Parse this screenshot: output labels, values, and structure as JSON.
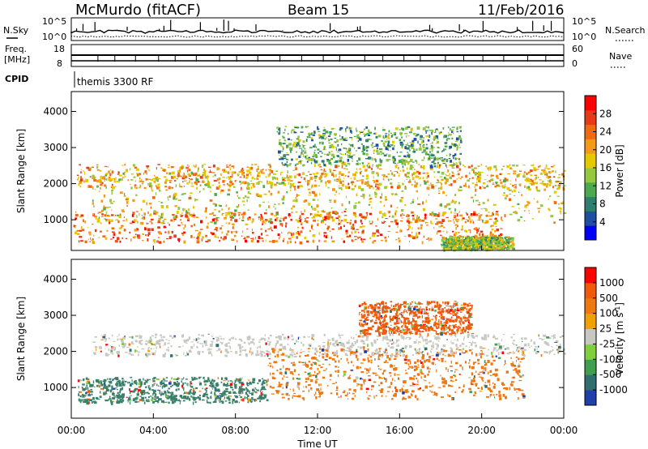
{
  "header": {
    "station": "McMurdo (fitACF)",
    "beam": "Beam 15",
    "date": "11/Feb/2016"
  },
  "strips": {
    "nsky_label": "N.Sky",
    "nsearch_label": "N.Search",
    "nsky_ticks": [
      "10^5",
      "10^0"
    ],
    "nsearch_ticks": [
      "10^5",
      "10^0"
    ],
    "freq_label": "Freq.",
    "freq_unit": "[MHz]",
    "freq_ticks": [
      "18",
      "8"
    ],
    "nave_label": "Nave",
    "nave_ticks": [
      "60",
      "0"
    ],
    "cpid_label": "CPID",
    "cpid_value": "themis 3300 RF"
  },
  "chart_data": [
    {
      "type": "heatmap",
      "name": "power",
      "ylabel": "Slant Range [km]",
      "ylim": [
        150,
        4550
      ],
      "yticks": [
        "1000",
        "2000",
        "3000",
        "4000"
      ],
      "xlim_hours": [
        0,
        24
      ],
      "colorbar": {
        "label": "Power [dB]",
        "ticks": [
          "28",
          "24",
          "20",
          "16",
          "12",
          "8",
          "4"
        ],
        "colors": [
          "#0000ff",
          "#1e4fa0",
          "#2f7f70",
          "#4caa4c",
          "#95c83c",
          "#e6c800",
          "#f59a16",
          "#f06a12",
          "#e83a14",
          "#ff0000"
        ]
      },
      "regions": [
        {
          "t": [
            0.1,
            21.0
          ],
          "r": [
            400,
            1250
          ],
          "level": 7
        },
        {
          "t": [
            0.2,
            24.0
          ],
          "r": [
            1900,
            2550
          ],
          "level": 6
        },
        {
          "t": [
            1.0,
            24.0
          ],
          "r": [
            950,
            2350
          ],
          "level": 5
        },
        {
          "t": [
            10.0,
            19.0
          ],
          "r": [
            2500,
            3600
          ],
          "level": 3
        },
        {
          "t": [
            18.0,
            21.5
          ],
          "r": [
            200,
            550
          ],
          "level": 4
        }
      ]
    },
    {
      "type": "heatmap",
      "name": "velocity",
      "ylabel": "Slant Range [km]",
      "ylim": [
        150,
        4550
      ],
      "yticks": [
        "1000",
        "2000",
        "3000",
        "4000"
      ],
      "xlim_hours": [
        0,
        24
      ],
      "xticks": [
        "00:00",
        "04:00",
        "08:00",
        "12:00",
        "16:00",
        "20:00",
        "00:00"
      ],
      "xlabel": "Time UT",
      "colorbar": {
        "label": "Velocity [m s-1]",
        "label_main": "Velocity [m s",
        "label_sup": "-1",
        "label_end": "]",
        "ticks": [
          "1000",
          "500",
          "100",
          "25",
          "-25",
          "-100",
          "-500",
          "-1000"
        ],
        "colors": [
          "#1f3faa",
          "#2f6f6f",
          "#3f9f4f",
          "#7fcf3f",
          "#c8c8c0",
          "#f0a000",
          "#f07810",
          "#f05a0a",
          "#ff0000"
        ]
      },
      "regions": [
        {
          "t": [
            0.3,
            9.5
          ],
          "r": [
            600,
            1300
          ],
          "color": "#3a7f6a"
        },
        {
          "t": [
            9.5,
            22.0
          ],
          "r": [
            700,
            2100
          ],
          "color": "#f07810"
        },
        {
          "t": [
            1.0,
            24.0
          ],
          "r": [
            1900,
            2500
          ],
          "color": "#c8c8c0"
        },
        {
          "t": [
            14.0,
            19.5
          ],
          "r": [
            2500,
            3400
          ],
          "color": "#f05a0a"
        }
      ]
    }
  ]
}
